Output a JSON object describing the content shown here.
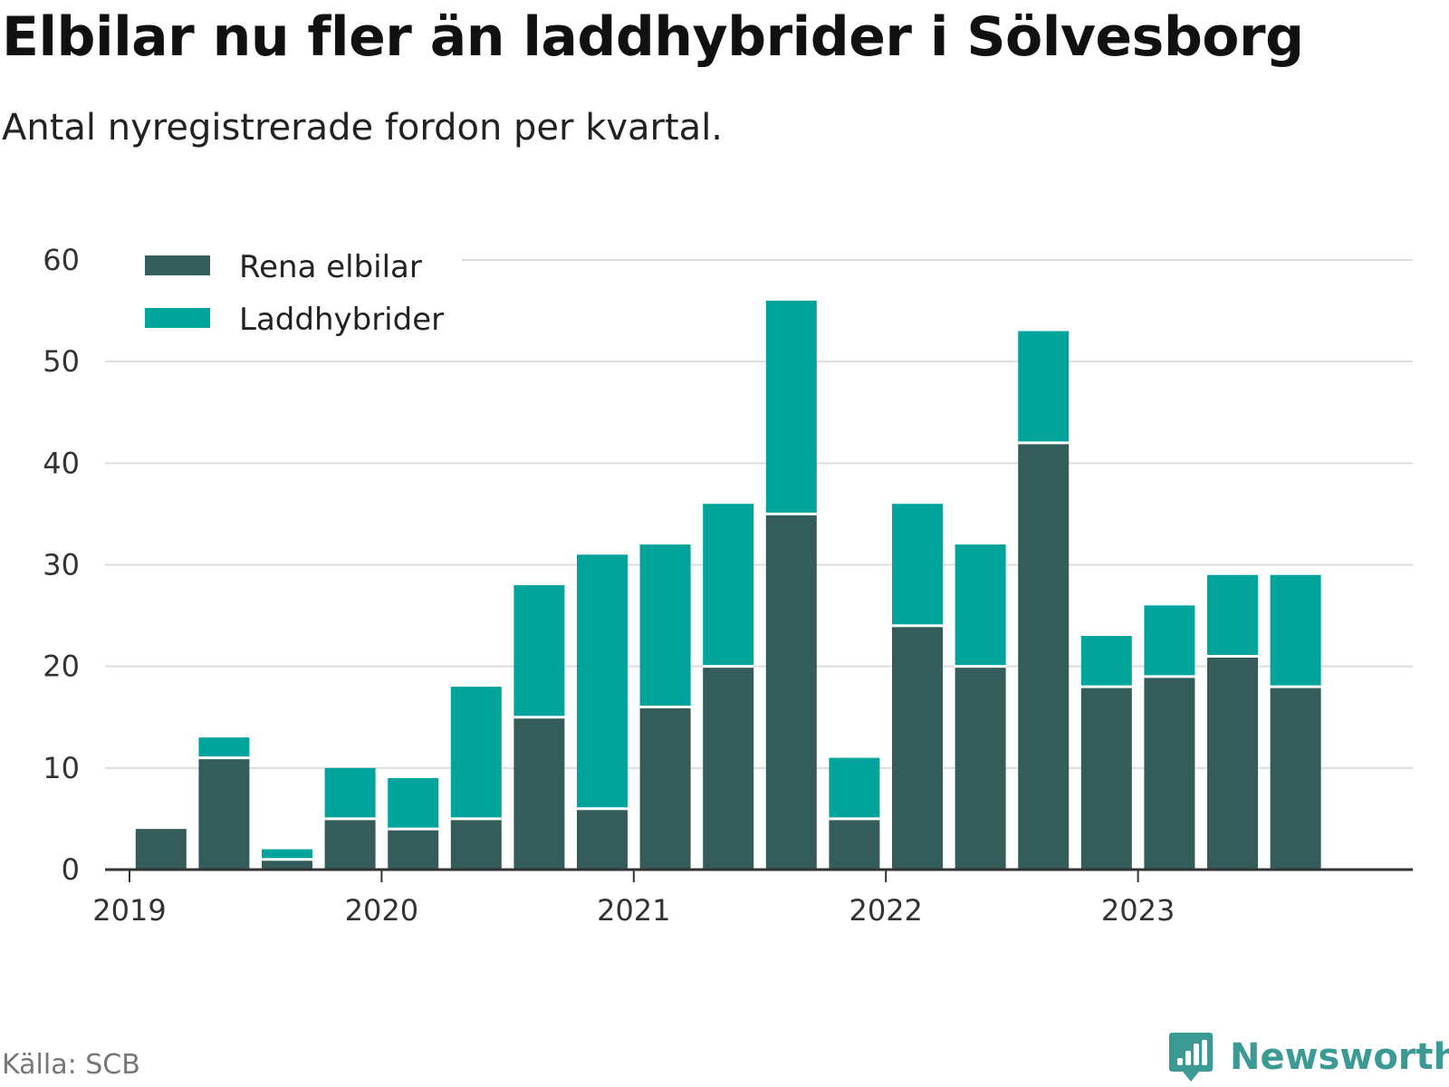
{
  "title": "Elbilar nu fler än laddhybrider i Sölvesborg",
  "subtitle": "Antal nyregistrerade fordon per kvartal.",
  "source": "Källa: SCB",
  "brand": "Newsworthy",
  "colors": {
    "ev": "#335c5a",
    "phev": "#01a49a",
    "grid": "#dddddd",
    "axis": "#333333"
  },
  "chart_data": {
    "type": "bar",
    "stacked": true,
    "categories": [
      "2019 Q1",
      "2019 Q2",
      "2019 Q3",
      "2019 Q4",
      "2020 Q1",
      "2020 Q2",
      "2020 Q3",
      "2020 Q4",
      "2021 Q1",
      "2021 Q2",
      "2021 Q3",
      "2021 Q4",
      "2022 Q1",
      "2022 Q2",
      "2022 Q3",
      "2022 Q4",
      "2023 Q1",
      "2023 Q2",
      "2023 Q3",
      "2023 Q4"
    ],
    "series": [
      {
        "name": "Rena elbilar",
        "values": [
          4,
          11,
          1,
          5,
          4,
          5,
          15,
          6,
          16,
          20,
          35,
          5,
          24,
          20,
          42,
          18,
          19,
          21,
          18,
          null
        ]
      },
      {
        "name": "Laddhybrider",
        "values": [
          0,
          2,
          1,
          5,
          5,
          13,
          13,
          25,
          16,
          16,
          21,
          6,
          12,
          12,
          11,
          5,
          7,
          8,
          11,
          null
        ]
      }
    ],
    "x_tick_labels": [
      "2019",
      "2020",
      "2021",
      "2022",
      "2023"
    ],
    "y_ticks": [
      0,
      10,
      20,
      30,
      40,
      50,
      60
    ],
    "ylim": [
      0,
      60
    ],
    "xlabel": "",
    "ylabel": "",
    "legend": "top-left",
    "grid": true
  }
}
